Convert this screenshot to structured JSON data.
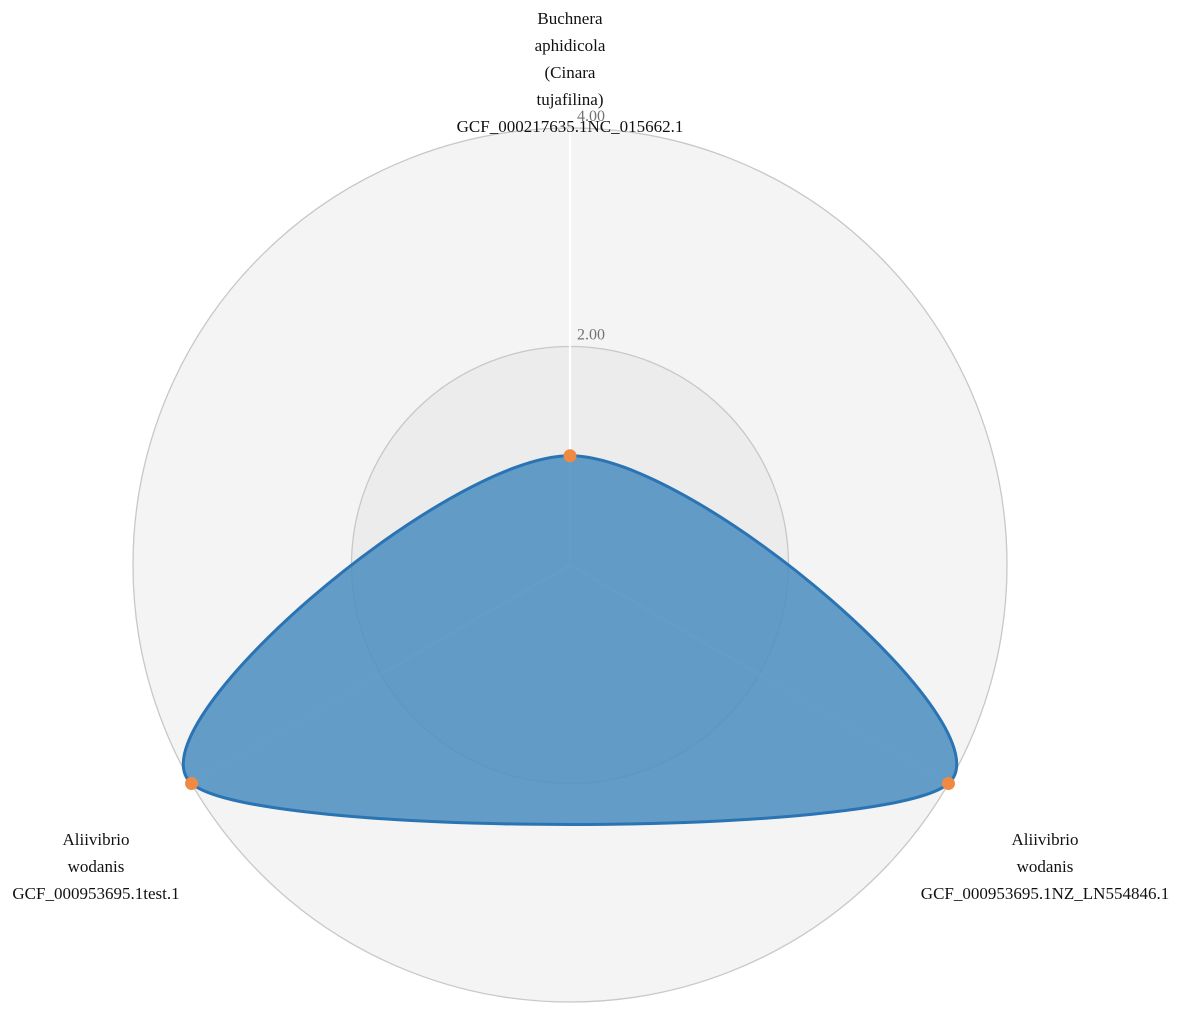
{
  "chart_data": {
    "type": "radar",
    "axes": [
      {
        "name": "Buchnera aphidicola (Cinara tujafilina) GCF_000217635.1NC_015662.1",
        "label_lines": [
          "Buchnera",
          "aphidicola",
          "(Cinara",
          "tujafilina)",
          "GCF_000217635.1NC_015662.1"
        ]
      },
      {
        "name": "Aliivibrio wodanis GCF_000953695.1NZ_LN554846.1",
        "label_lines": [
          "Aliivibrio",
          "wodanis",
          "GCF_000953695.1NZ_LN554846.1"
        ]
      },
      {
        "name": "Aliivibrio wodanis GCF_000953695.1test.1",
        "label_lines": [
          "Aliivibrio",
          "wodanis",
          "GCF_000953695.1test.1"
        ]
      }
    ],
    "series": [
      {
        "values": [
          1.0,
          4.0,
          4.0
        ]
      }
    ],
    "rmax": 4.0,
    "ticks": [
      {
        "value": 2.0,
        "label": "2.00"
      },
      {
        "value": 4.0,
        "label": "4.00"
      }
    ],
    "colors": {
      "fill": "#4f8fc0",
      "stroke": "#2a74b4",
      "point": "#ef8a45",
      "ring_outer": "#f4f4f4",
      "ring_inner": "#ececec",
      "ring_stroke": "#c8c8c8",
      "axis_line": "#ffffff"
    }
  }
}
